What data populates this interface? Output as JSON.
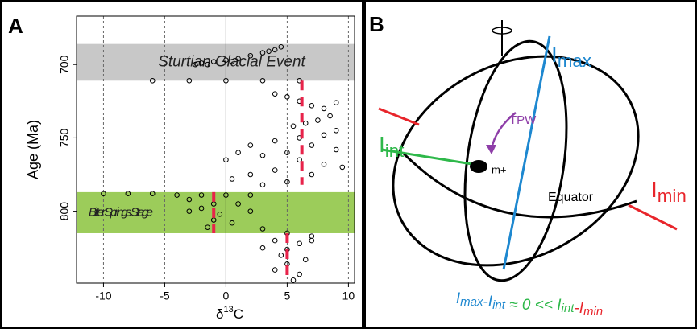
{
  "chart_data": {
    "type": "scatter",
    "panel_label": "A",
    "y_label": "Age (Ma)",
    "x_label": {
      "symbol": "δ",
      "sup": "13",
      "unit": "C"
    },
    "x": [
      -2,
      -1,
      0,
      1,
      2,
      3,
      4,
      4.5,
      3.5,
      -2.5,
      -1.5,
      0.5,
      4,
      5,
      6,
      7,
      8,
      9,
      8.5,
      7.5,
      6.5,
      5.5,
      9,
      8,
      6,
      4,
      2,
      7,
      9,
      5,
      3,
      1,
      0,
      6,
      8,
      9.5,
      4,
      2,
      0.5,
      7,
      5,
      3,
      -10,
      -8,
      -6,
      -4,
      -2,
      0,
      2,
      -3,
      -1,
      -2,
      -0.5,
      -1,
      -3,
      1,
      2,
      0.5,
      -1.5,
      3,
      5,
      7,
      4,
      6,
      5,
      4.5,
      6.5,
      5,
      4,
      6,
      5.5,
      7,
      3,
      -6,
      -3,
      0,
      3,
      6
    ],
    "values": [
      699,
      698,
      697,
      696,
      694,
      692,
      690,
      688,
      691,
      700,
      700,
      698,
      720,
      722,
      725,
      728,
      730,
      726,
      735,
      738,
      740,
      742,
      745,
      748,
      750,
      752,
      755,
      755,
      758,
      760,
      762,
      760,
      765,
      765,
      768,
      770,
      772,
      775,
      778,
      775,
      780,
      782,
      788,
      788,
      788,
      789,
      789,
      789,
      789,
      792,
      795,
      798,
      802,
      806,
      800,
      795,
      800,
      808,
      811,
      812,
      815,
      817,
      820,
      822,
      826,
      830,
      833,
      836,
      840,
      843,
      847,
      820,
      825,
      711,
      711,
      711,
      711,
      711
    ],
    "marker_color": "#000000",
    "means": [
      {
        "x": 6.2,
        "from": 711,
        "to": 782
      },
      {
        "x": -1,
        "from": 787,
        "to": 815
      },
      {
        "x": 5,
        "from": 815,
        "to": 845
      }
    ],
    "mean_color": "#e8234a",
    "bands": [
      {
        "label": "Sturtian Glacial Event",
        "from": 686,
        "to": 711,
        "color": "#c8c8c8"
      },
      {
        "label": "Bitter Springs Stage",
        "from": 787,
        "to": 815,
        "color": "#9ccc5a"
      }
    ],
    "xlim": [
      -12.2,
      10.5
    ],
    "xticks": [
      -10,
      -5,
      0,
      5,
      10
    ],
    "ylim": [
      667,
      849
    ],
    "y_inverted": true,
    "yticks": [
      700,
      750,
      800
    ],
    "grid": true
  },
  "diagram": {
    "panel_label": "B",
    "axes": [
      {
        "base": "I",
        "sub": "max",
        "color": "#1e88d0"
      },
      {
        "base": "I",
        "sub": "int",
        "color": "#2eb84a"
      },
      {
        "base": "I",
        "sub": "min",
        "color": "#e8252b"
      }
    ],
    "arrow_label": "TPW",
    "point_label": "m+",
    "equator_label": "Equator",
    "formula": [
      {
        "base": "I",
        "sub": "max",
        "color": "#1e88d0"
      },
      {
        "text": "-",
        "color": "#1e88d0"
      },
      {
        "base": "I",
        "sub": "int",
        "color": "#1e88d0"
      },
      {
        "text": " ≈ 0 << ",
        "color": "#2eb84a"
      },
      {
        "base": "I",
        "sub": "int",
        "color": "#2eb84a"
      },
      {
        "text": "-",
        "color": "#e8252b"
      },
      {
        "base": "I",
        "sub": "min",
        "color": "#e8252b"
      }
    ]
  }
}
